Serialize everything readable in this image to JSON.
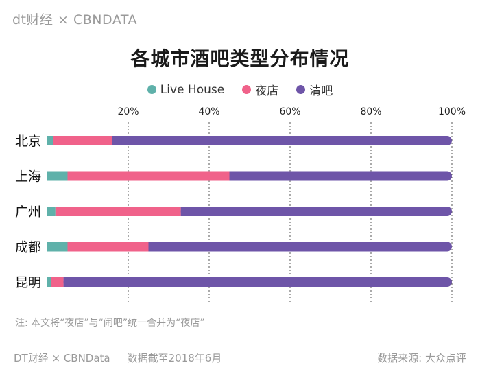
{
  "header": {
    "logo_text": "dt财经 × CBNDATA"
  },
  "chart_data": {
    "type": "bar",
    "orientation": "horizontal",
    "stacked": true,
    "title": "各城市酒吧类型分布情况",
    "categories": [
      "北京",
      "上海",
      "广州",
      "成都",
      "昆明"
    ],
    "series": [
      {
        "name": "Live House",
        "color": "#5fb1aa",
        "values": [
          1.5,
          5,
          2,
          5,
          1
        ]
      },
      {
        "name": "夜店",
        "color": "#f0628a",
        "values": [
          14.5,
          40,
          31,
          20,
          3
        ]
      },
      {
        "name": "清吧",
        "color": "#6e55a8",
        "values": [
          84,
          55,
          67,
          75,
          96
        ]
      }
    ],
    "x_ticks": [
      "20%",
      "40%",
      "60%",
      "80%",
      "100%"
    ],
    "x_tick_values": [
      20,
      40,
      60,
      80,
      100
    ],
    "xlim": [
      0,
      100
    ],
    "grid": "vertical dashed",
    "legend_position": "top"
  },
  "note": "注: 本文将“夜店”与“闹吧”统一合并为“夜店”",
  "footer": {
    "brand": "DT财经 × CBNData",
    "date": "数据截至2018年6月",
    "source": "数据来源: 大众点评"
  }
}
